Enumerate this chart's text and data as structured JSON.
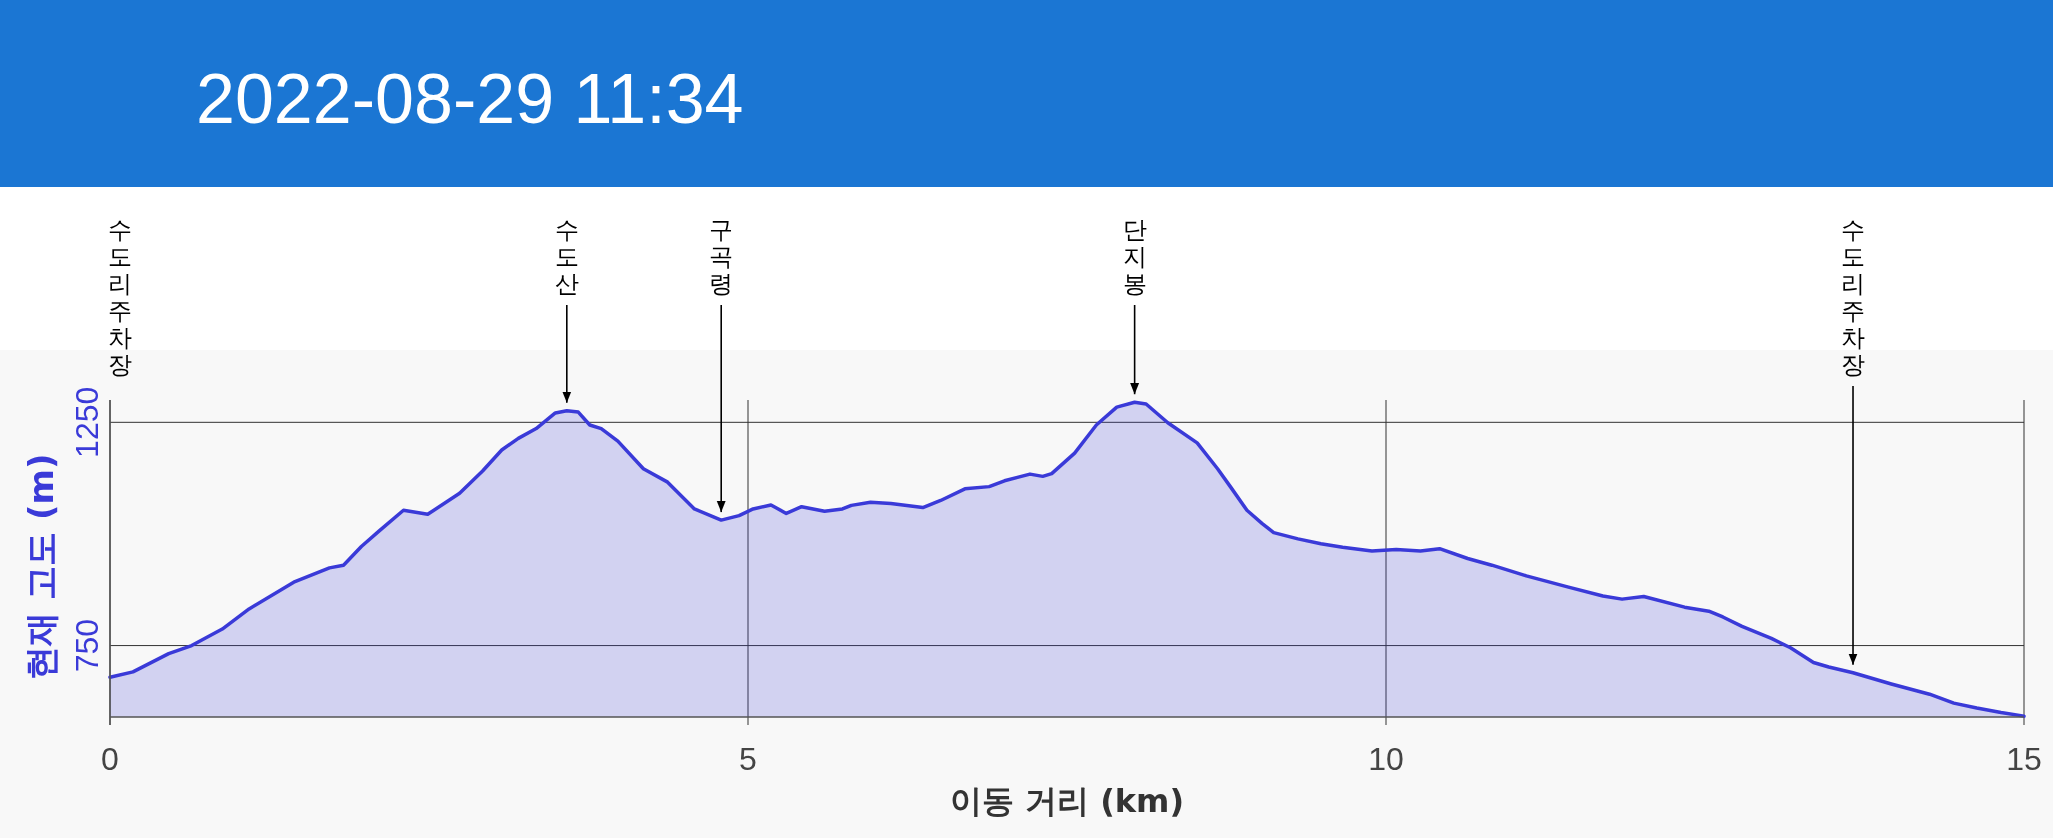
{
  "chart_data": {
    "type": "area",
    "title": "2022-08-29 11:34",
    "xlabel": "이동 거리 (km)",
    "ylabel": "현재 고도 (m)",
    "xlim": [
      0,
      15
    ],
    "xticks": [
      0,
      5,
      10,
      15
    ],
    "ylim": [
      590,
      1300
    ],
    "yticks": [
      750,
      1250
    ],
    "grid": true,
    "series": [
      {
        "color": "#3a3ad8",
        "x": [
          0,
          0.18,
          0.46,
          0.64,
          0.88,
          1.09,
          1.44,
          1.72,
          1.83,
          1.97,
          2.11,
          2.3,
          2.49,
          2.74,
          2.92,
          3.07,
          3.2,
          3.34,
          3.49,
          3.58,
          3.67,
          3.76,
          3.85,
          3.98,
          4.18,
          4.37,
          4.58,
          4.79,
          4.93,
          5.04,
          5.18,
          5.3,
          5.42,
          5.6,
          5.74,
          5.81,
          5.96,
          6.12,
          6.37,
          6.51,
          6.7,
          6.89,
          7.01,
          7.21,
          7.31,
          7.38,
          7.56,
          7.73,
          7.89,
          8.03,
          8.12,
          8.29,
          8.52,
          8.68,
          8.78,
          8.91,
          9.03,
          9.12,
          9.31,
          9.49,
          9.66,
          9.89,
          10.08,
          10.27,
          10.42,
          10.64,
          10.83,
          11.1,
          11.43,
          11.7,
          11.85,
          12.02,
          12.34,
          12.53,
          12.64,
          12.79,
          13.02,
          13.17,
          13.35,
          13.47,
          13.66,
          13.96,
          14.26,
          14.45,
          14.63,
          14.82,
          15
        ],
        "values": [
          679,
          691,
          732,
          750,
          787,
          832,
          892,
          924,
          930,
          972,
          1007,
          1053,
          1044,
          1091,
          1141,
          1188,
          1214,
          1236,
          1271,
          1276,
          1273,
          1244,
          1236,
          1208,
          1146,
          1116,
          1056,
          1031,
          1041,
          1056,
          1065,
          1046,
          1061,
          1051,
          1056,
          1064,
          1071,
          1068,
          1059,
          1075,
          1101,
          1106,
          1119,
          1134,
          1129,
          1135,
          1181,
          1244,
          1284,
          1295,
          1291,
          1249,
          1204,
          1146,
          1106,
          1053,
          1023,
          1003,
          989,
          978,
          970,
          962,
          965,
          962,
          967,
          945,
          930,
          906,
          881,
          861,
          854,
          860,
          836,
          827,
          814,
          793,
          766,
          745,
          712,
          702,
          689,
          664,
          641,
          621,
          610,
          600,
          592
        ]
      }
    ],
    "annotations": [
      "수도리주차장",
      {
        "text": "수도산",
        "x": 3.58,
        "y": 1276
      },
      {
        "text": "구곡령",
        "x": 4.79,
        "y": 1031
      },
      {
        "text": "단지봉",
        "x": 8.03,
        "y": 1295
      },
      {
        "text": "수도리주차장",
        "x": 13.66,
        "y": 689
      }
    ]
  }
}
